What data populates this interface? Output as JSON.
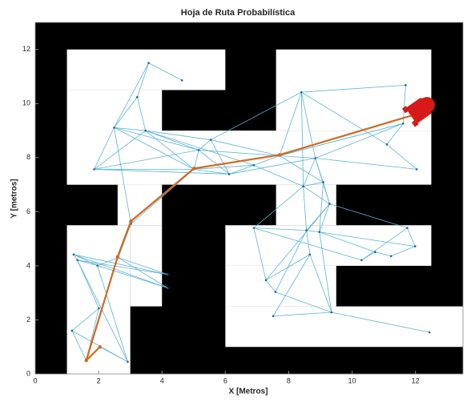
{
  "chart_data": {
    "type": "roadmap",
    "title": "Hoja de Ruta Probabilística",
    "xlabel": "X [Metros]",
    "ylabel": "Y [metros]",
    "xlim": [
      0,
      13.5
    ],
    "ylim": [
      0,
      13
    ],
    "xticks": [
      0,
      2,
      4,
      6,
      8,
      10,
      12
    ],
    "yticks": [
      0,
      2,
      4,
      6,
      8,
      10,
      12
    ],
    "obstacle_color": "#000000",
    "free_color": "#ffffff",
    "free_regions": [
      [
        1,
        10.5,
        6,
        12
      ],
      [
        1,
        7,
        4,
        10.5
      ],
      [
        1,
        7,
        12.5,
        9
      ],
      [
        7.6,
        9,
        12.5,
        12
      ],
      [
        7.6,
        5.5,
        9.5,
        7
      ],
      [
        2.6,
        5.5,
        4,
        7
      ],
      [
        1,
        0,
        3,
        5.5
      ],
      [
        3,
        2.5,
        4,
        5.5
      ],
      [
        6,
        4,
        12.5,
        5.5
      ],
      [
        6,
        2.5,
        9.5,
        4
      ],
      [
        6,
        1,
        13.5,
        2.5
      ]
    ],
    "node_color": "#1f5fa8",
    "edge_color": "#5ab4d6",
    "nodes_x": [
      3.58,
      4.63,
      3.22,
      2.49,
      1.86,
      3.48,
      5.16,
      5.54,
      5.01,
      6.12,
      6.9,
      7.71,
      8.4,
      8.84,
      8.46,
      9.09,
      9.29,
      11.1,
      11.69,
      11.61,
      12.04,
      6.9,
      8.56,
      8.97,
      11.74,
      11.99,
      10.3,
      10.73,
      11.23,
      7.28,
      7.58,
      8.67,
      9.35,
      7.51,
      12.44,
      1.21,
      1.33,
      1.96,
      2.62,
      4.18,
      4.18,
      2.01,
      1.16,
      1.61,
      2.04,
      2.92,
      3.02
    ],
    "nodes_y": [
      11.5,
      10.86,
      10.24,
      9.11,
      7.57,
      9.0,
      8.28,
      8.66,
      7.57,
      7.39,
      7.72,
      8.07,
      10.42,
      7.98,
      6.94,
      7.09,
      6.29,
      8.49,
      10.68,
      9.26,
      7.57,
      5.4,
      5.31,
      5.25,
      5.4,
      4.72,
      4.21,
      4.51,
      4.36,
      3.47,
      3.03,
      4.42,
      2.28,
      2.14,
      1.54,
      4.42,
      4.21,
      4.01,
      4.3,
      3.68,
      3.18,
      2.43,
      1.6,
      0.5,
      1.0,
      0.45,
      5.55
    ],
    "edges": [
      [
        0,
        1
      ],
      [
        0,
        2
      ],
      [
        0,
        3
      ],
      [
        2,
        3
      ],
      [
        2,
        5
      ],
      [
        3,
        4
      ],
      [
        3,
        5
      ],
      [
        3,
        6
      ],
      [
        3,
        8
      ],
      [
        4,
        5
      ],
      [
        4,
        6
      ],
      [
        4,
        8
      ],
      [
        4,
        9
      ],
      [
        5,
        6
      ],
      [
        5,
        7
      ],
      [
        5,
        8
      ],
      [
        5,
        10
      ],
      [
        6,
        7
      ],
      [
        6,
        8
      ],
      [
        6,
        9
      ],
      [
        6,
        11
      ],
      [
        7,
        9
      ],
      [
        7,
        11
      ],
      [
        7,
        12
      ],
      [
        8,
        9
      ],
      [
        8,
        10
      ],
      [
        8,
        46
      ],
      [
        9,
        10
      ],
      [
        9,
        13
      ],
      [
        10,
        11
      ],
      [
        10,
        14
      ],
      [
        11,
        12
      ],
      [
        11,
        13
      ],
      [
        11,
        15
      ],
      [
        11,
        19
      ],
      [
        12,
        13
      ],
      [
        12,
        17
      ],
      [
        12,
        18
      ],
      [
        12,
        14
      ],
      [
        13,
        14
      ],
      [
        13,
        15
      ],
      [
        13,
        16
      ],
      [
        13,
        20
      ],
      [
        14,
        15
      ],
      [
        14,
        16
      ],
      [
        14,
        21
      ],
      [
        14,
        22
      ],
      [
        15,
        16
      ],
      [
        15,
        23
      ],
      [
        16,
        22
      ],
      [
        16,
        23
      ],
      [
        16,
        24
      ],
      [
        17,
        19
      ],
      [
        17,
        20
      ],
      [
        18,
        19
      ],
      [
        19,
        13
      ],
      [
        19,
        11
      ],
      [
        21,
        22
      ],
      [
        21,
        26
      ],
      [
        21,
        29
      ],
      [
        22,
        23
      ],
      [
        22,
        31
      ],
      [
        22,
        30
      ],
      [
        23,
        25
      ],
      [
        23,
        27
      ],
      [
        24,
        25
      ],
      [
        24,
        26
      ],
      [
        26,
        27
      ],
      [
        27,
        28
      ],
      [
        28,
        25
      ],
      [
        29,
        30
      ],
      [
        29,
        31
      ],
      [
        30,
        32
      ],
      [
        31,
        32
      ],
      [
        32,
        33
      ],
      [
        33,
        31
      ],
      [
        32,
        34
      ],
      [
        16,
        29
      ],
      [
        23,
        32
      ],
      [
        35,
        36
      ],
      [
        35,
        37
      ],
      [
        35,
        39
      ],
      [
        36,
        37
      ],
      [
        36,
        41
      ],
      [
        37,
        38
      ],
      [
        37,
        40
      ],
      [
        38,
        39
      ],
      [
        38,
        40
      ],
      [
        38,
        46
      ],
      [
        41,
        42
      ],
      [
        41,
        43
      ],
      [
        42,
        43
      ],
      [
        42,
        45
      ],
      [
        43,
        44
      ],
      [
        44,
        45
      ],
      [
        36,
        45
      ],
      [
        37,
        45
      ],
      [
        46,
        3
      ],
      [
        40,
        35
      ],
      [
        39,
        36
      ]
    ],
    "path_color": "#d2691e",
    "path_x": [
      2.04,
      1.61,
      2.6,
      3.02,
      5.01,
      7.71,
      12
    ],
    "path_y": [
      1.0,
      0.5,
      4.33,
      5.65,
      7.6,
      8.1,
      9.6
    ],
    "robot_color": "#d61a1a"
  }
}
